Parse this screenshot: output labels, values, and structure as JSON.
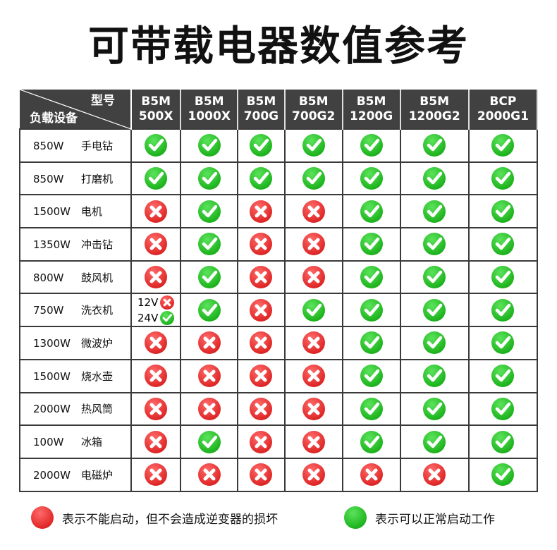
{
  "title": "可带载电器数值参考",
  "header": {
    "model_label": "型号",
    "device_label": "负载设备",
    "models": [
      [
        "B5M",
        "500X"
      ],
      [
        "B5M",
        "1000X"
      ],
      [
        "B5M",
        "700G"
      ],
      [
        "B5M",
        "700G2"
      ],
      [
        "B5M",
        "1200G"
      ],
      [
        "B5M",
        "1200G2"
      ],
      [
        "BCP",
        "2000G1"
      ]
    ]
  },
  "rows": [
    {
      "watt": "850W",
      "name": "手电钻",
      "support": [
        "Y",
        "Y",
        "Y",
        "Y",
        "Y",
        "Y",
        "Y"
      ]
    },
    {
      "watt": "850W",
      "name": "打磨机",
      "support": [
        "Y",
        "Y",
        "Y",
        "Y",
        "Y",
        "Y",
        "Y"
      ]
    },
    {
      "watt": "1500W",
      "name": "电机",
      "support": [
        "N",
        "Y",
        "N",
        "N",
        "Y",
        "Y",
        "Y"
      ]
    },
    {
      "watt": "1350W",
      "name": "冲击钻",
      "support": [
        "N",
        "Y",
        "N",
        "N",
        "Y",
        "Y",
        "Y"
      ]
    },
    {
      "watt": "800W",
      "name": "鼓风机",
      "support": [
        "N",
        "Y",
        "N",
        "N",
        "Y",
        "Y",
        "Y"
      ]
    },
    {
      "watt": "750W",
      "name": "洗衣机",
      "support": [
        "SPLIT",
        "Y",
        "N",
        "Y",
        "Y",
        "Y",
        "Y"
      ],
      "split": [
        {
          "label": "12V",
          "value": "N"
        },
        {
          "label": "24V",
          "value": "Y"
        }
      ]
    },
    {
      "watt": "1300W",
      "name": "微波炉",
      "support": [
        "N",
        "N",
        "N",
        "N",
        "Y",
        "Y",
        "Y"
      ]
    },
    {
      "watt": "1500W",
      "name": "烧水壶",
      "support": [
        "N",
        "N",
        "N",
        "N",
        "Y",
        "Y",
        "Y"
      ]
    },
    {
      "watt": "2000W",
      "name": "热风筒",
      "support": [
        "N",
        "N",
        "N",
        "N",
        "Y",
        "Y",
        "Y"
      ]
    },
    {
      "watt": "100W",
      "name": "冰箱",
      "support": [
        "N",
        "Y",
        "N",
        "N",
        "Y",
        "Y",
        "Y"
      ]
    },
    {
      "watt": "2000W",
      "name": "电磁炉",
      "support": [
        "N",
        "N",
        "N",
        "N",
        "N",
        "N",
        "Y"
      ]
    }
  ],
  "legend": {
    "no": "表示不能启动，但不会造成逆变器的损坏",
    "yes": "表示可以正常启动工作"
  },
  "colors": {
    "header": "#414141",
    "check": "#1fb51f",
    "cross": "#e02828"
  }
}
